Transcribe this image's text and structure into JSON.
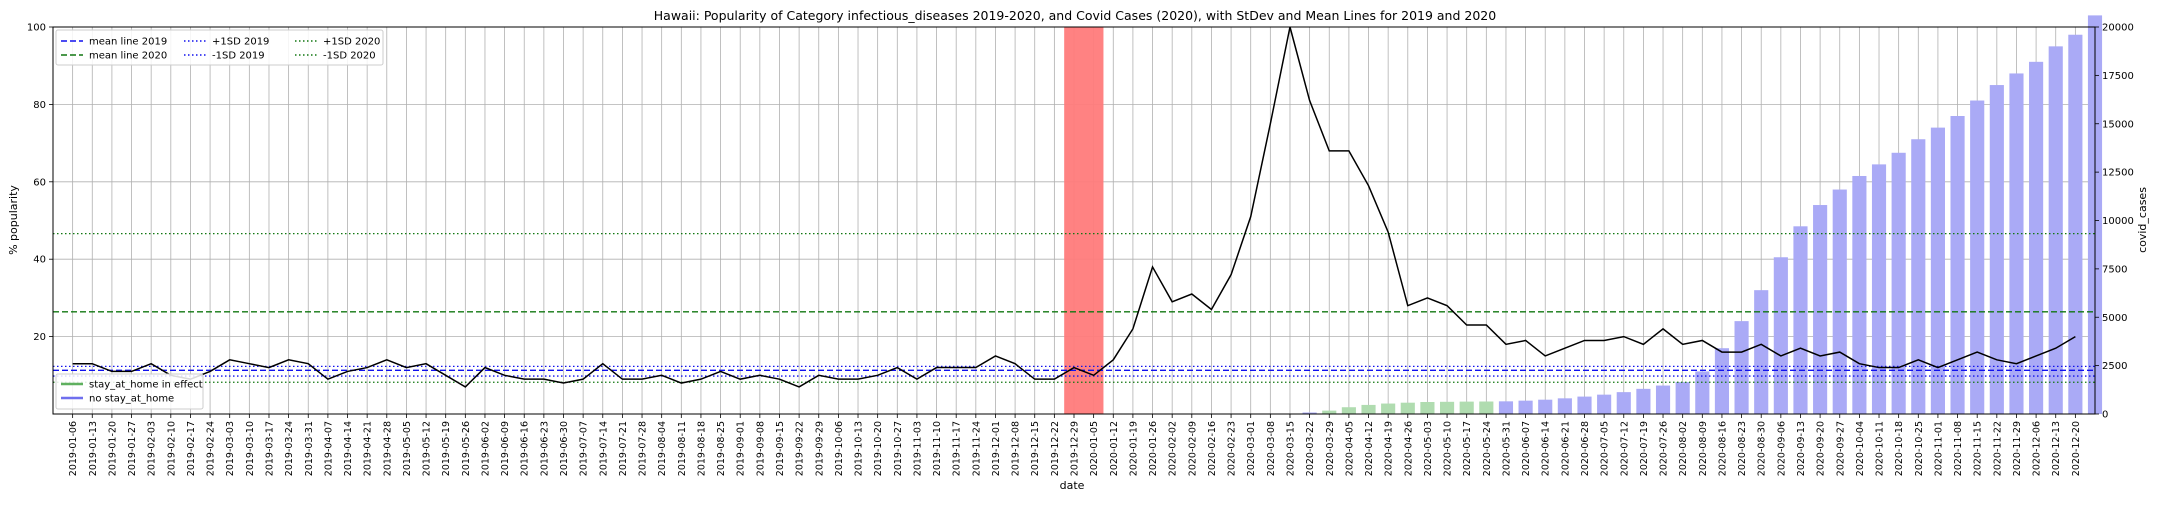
{
  "chart_data": {
    "type": "bar+line",
    "title": "Hawaii: Popularity of Category infectious_diseases 2019-2020, and Covid Cases (2020), with StDev and Mean Lines for 2019 and 2020",
    "xlabel": "date",
    "ylabel_left": "% popularity",
    "ylabel_right": "covid_cases",
    "ylim_left": [
      0,
      100
    ],
    "ylim_right": [
      0,
      20000
    ],
    "grid": true,
    "yticks_left": [
      20,
      40,
      60,
      80,
      100
    ],
    "yticks_right": [
      0,
      2500,
      5000,
      7500,
      10000,
      12500,
      15000,
      17500,
      20000
    ],
    "x": [
      "2019-01-06",
      "2019-01-13",
      "2019-01-20",
      "2019-01-27",
      "2019-02-03",
      "2019-02-10",
      "2019-02-17",
      "2019-02-24",
      "2019-03-03",
      "2019-03-10",
      "2019-03-17",
      "2019-03-24",
      "2019-03-31",
      "2019-04-07",
      "2019-04-14",
      "2019-04-21",
      "2019-04-28",
      "2019-05-05",
      "2019-05-12",
      "2019-05-19",
      "2019-05-26",
      "2019-06-02",
      "2019-06-09",
      "2019-06-16",
      "2019-06-23",
      "2019-06-30",
      "2019-07-07",
      "2019-07-14",
      "2019-07-21",
      "2019-07-28",
      "2019-08-04",
      "2019-08-11",
      "2019-08-18",
      "2019-08-25",
      "2019-09-01",
      "2019-09-08",
      "2019-09-15",
      "2019-09-22",
      "2019-09-29",
      "2019-10-06",
      "2019-10-13",
      "2019-10-20",
      "2019-10-27",
      "2019-11-03",
      "2019-11-10",
      "2019-11-17",
      "2019-11-24",
      "2019-12-01",
      "2019-12-08",
      "2019-12-15",
      "2019-12-22",
      "2019-12-29",
      "2020-01-05",
      "2020-01-12",
      "2020-01-19",
      "2020-01-26",
      "2020-02-02",
      "2020-02-09",
      "2020-02-16",
      "2020-02-23",
      "2020-03-01",
      "2020-03-08",
      "2020-03-15",
      "2020-03-22",
      "2020-03-29",
      "2020-04-05",
      "2020-04-12",
      "2020-04-19",
      "2020-04-26",
      "2020-05-03",
      "2020-05-10",
      "2020-05-17",
      "2020-05-24",
      "2020-05-31",
      "2020-06-07",
      "2020-06-14",
      "2020-06-21",
      "2020-06-28",
      "2020-07-05",
      "2020-07-12",
      "2020-07-19",
      "2020-07-26",
      "2020-08-02",
      "2020-08-09",
      "2020-08-16",
      "2020-08-23",
      "2020-08-30",
      "2020-09-06",
      "2020-09-13",
      "2020-09-20",
      "2020-09-27",
      "2020-10-04",
      "2020-10-11",
      "2020-10-18",
      "2020-10-25",
      "2020-11-01",
      "2020-11-08",
      "2020-11-15",
      "2020-11-22",
      "2020-11-29",
      "2020-12-06",
      "2020-12-13",
      "2020-12-20"
    ],
    "xtick_labels": [
      "2019-01-06",
      "2019-01-13",
      "2019-01-20",
      "2019-01-27",
      "2019-02-03",
      "2019-02-10",
      "2019-02-17",
      "2019-02-24",
      "2019-03-03",
      "2019-03-10",
      "2019-03-17",
      "2019-03-24",
      "2019-03-31",
      "2019-04-07",
      "2019-04-14",
      "2019-04-21",
      "2019-04-28",
      "2019-05-05",
      "2019-05-12",
      "2019-05-19",
      "2019-05-26",
      "2019-06-02",
      "2019-06-09",
      "2019-06-16",
      "2019-06-23",
      "2019-06-30",
      "2019-07-07",
      "2019-07-14",
      "2019-07-21",
      "2019-07-28",
      "2019-08-04",
      "2019-08-11",
      "2019-08-18",
      "2019-08-25",
      "2019-09-01",
      "2019-09-08",
      "2019-09-15",
      "2019-09-22",
      "2019-09-29",
      "2019-10-06",
      "2019-10-13",
      "2019-10-20",
      "2019-10-27",
      "2019-11-03",
      "2019-11-10",
      "2019-11-17",
      "2019-11-24",
      "2019-12-01",
      "2019-12-08",
      "2019-12-15",
      "2019-12-22",
      "2019-12-29",
      "2020-01-05",
      "2020-01-12",
      "2020-01-19",
      "2020-01-26",
      "2020-02-02",
      "2020-02-09",
      "2020-02-16",
      "2020-02-23",
      "2020-03-01",
      "2020-03-08",
      "2020-03-15",
      "2020-03-22",
      "2020-03-29",
      "2020-04-05",
      "2020-04-12",
      "2020-04-19",
      "2020-04-26",
      "2020-05-03",
      "2020-05-10",
      "2020-05-17",
      "2020-05-24",
      "2020-05-31",
      "2020-06-07",
      "2020-06-14",
      "2020-06-21",
      "2020-06-28",
      "2020-07-05",
      "2020-07-12",
      "2020-07-19",
      "2020-07-26",
      "2020-08-02",
      "2020-08-09",
      "2020-08-16",
      "2020-08-23",
      "2020-08-30",
      "2020-09-06",
      "2020-09-13",
      "2020-09-20",
      "2020-09-27",
      "2020-10-04",
      "2020-10-11",
      "2020-10-18",
      "2020-10-25",
      "2020-11-01",
      "2020-11-08",
      "2020-11-15",
      "2020-11-22",
      "2020-11-29",
      "2020-12-06",
      "2020-12-13",
      "2020-12-20"
    ],
    "popularity": [
      13,
      13,
      11,
      11,
      13,
      10,
      9,
      11,
      14,
      13,
      12,
      14,
      13,
      9,
      11,
      12,
      14,
      12,
      13,
      10,
      7,
      12,
      10,
      9,
      9,
      8,
      9,
      13,
      9,
      9,
      10,
      8,
      9,
      11,
      9,
      10,
      9,
      7,
      10,
      9,
      9,
      10,
      12,
      9,
      12,
      12,
      12,
      15,
      13,
      9,
      9,
      12,
      10,
      14,
      22,
      38,
      29,
      31,
      27,
      36,
      51,
      75,
      100,
      81,
      68,
      68,
      59,
      47,
      28,
      30,
      28,
      23,
      23,
      18,
      19,
      15,
      17,
      19,
      19,
      20,
      18,
      22,
      18,
      19,
      16,
      16,
      18,
      15,
      17,
      15,
      16,
      13,
      12,
      12,
      14,
      12,
      14,
      16,
      14,
      13,
      15,
      17,
      20
    ],
    "covid_cases": [
      0,
      0,
      0,
      0,
      0,
      0,
      0,
      0,
      0,
      0,
      0,
      0,
      0,
      0,
      0,
      0,
      0,
      0,
      0,
      0,
      0,
      0,
      0,
      0,
      0,
      0,
      0,
      0,
      0,
      0,
      0,
      0,
      0,
      0,
      0,
      0,
      0,
      0,
      0,
      0,
      0,
      0,
      0,
      0,
      0,
      0,
      0,
      0,
      0,
      0,
      0,
      0,
      0,
      0,
      0,
      0,
      0,
      0,
      0,
      0,
      0,
      0,
      0,
      77,
      175,
      350,
      470,
      540,
      585,
      620,
      630,
      640,
      645,
      655,
      690,
      740,
      810,
      900,
      1000,
      1130,
      1300,
      1470,
      1650,
      2200,
      3400,
      4800,
      6400,
      8100,
      9700,
      10800,
      11600,
      12300,
      12900,
      13500,
      14200,
      14800,
      15400,
      16200,
      17000,
      17600,
      18200,
      19000,
      19600,
      20600
    ],
    "stay_at_home_weeks": [
      "2020-03-29",
      "2020-04-05",
      "2020-04-12",
      "2020-04-19",
      "2020-04-26",
      "2020-05-03",
      "2020-05-10",
      "2020-05-17",
      "2020-05-24"
    ],
    "highlight_weeks": [
      "2019-12-29",
      "2020-01-05"
    ],
    "reference_lines": {
      "mean_2019": 11.3,
      "plus1sd_2019": 12.3,
      "minus1sd_2019": 9.8,
      "mean_2020": 26.4,
      "plus1sd_2020": 46.6,
      "minus1sd_2020": 8.2
    },
    "colors": {
      "line": "#000000",
      "bar_no_stay": "#aaaaf6",
      "bar_stay": "#b0dcb0",
      "highlight": "#ff7b7b",
      "blue_ref": "#1111ee",
      "green_ref": "#117711",
      "grid": "#b0b0b0"
    },
    "legend_upper": {
      "placement": "top-left",
      "entries": [
        {
          "label": "mean line 2019",
          "color": "#1111ee",
          "dash": "dashed"
        },
        {
          "label": "mean line 2020",
          "color": "#117711",
          "dash": "dashed"
        },
        {
          "label": "+1SD 2019",
          "color": "#1111ee",
          "dash": "dotted"
        },
        {
          "label": "-1SD 2019",
          "color": "#1111ee",
          "dash": "dotted"
        },
        {
          "label": "+1SD 2020",
          "color": "#117711",
          "dash": "dotted"
        },
        {
          "label": "-1SD 2020",
          "color": "#117711",
          "dash": "dotted"
        }
      ]
    },
    "legend_lower": {
      "placement": "bottom-left",
      "entries": [
        {
          "label": "stay_at_home in effect",
          "color": "#5fb05f"
        },
        {
          "label": "no stay_at_home",
          "color": "#6f6fee"
        }
      ]
    }
  }
}
